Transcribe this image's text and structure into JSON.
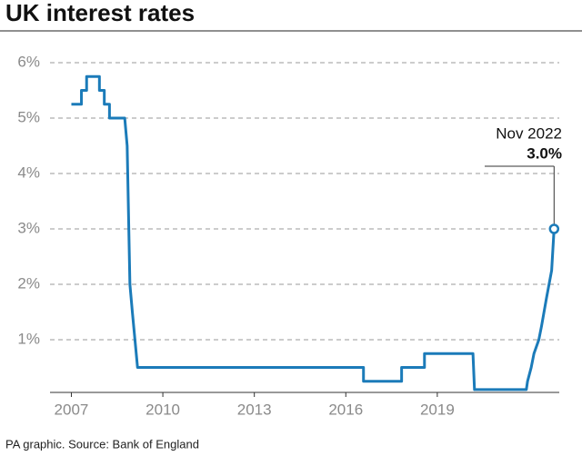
{
  "chart_data": {
    "type": "line",
    "title": "UK interest rates",
    "source": "PA graphic. Source: Bank of England",
    "x": [
      2007.0,
      2007.33,
      2007.33,
      2007.5,
      2007.5,
      2007.92,
      2007.92,
      2008.08,
      2008.08,
      2008.25,
      2008.25,
      2008.75,
      2008.83,
      2008.92,
      2009.0,
      2009.17,
      2016.58,
      2016.58,
      2017.83,
      2017.83,
      2018.58,
      2018.58,
      2020.17,
      2020.22,
      2021.92,
      2021.96,
      2022.08,
      2022.17,
      2022.33,
      2022.42,
      2022.58,
      2022.75,
      2022.83
    ],
    "series": [
      {
        "color": "#1b7bb9",
        "values": [
          5.25,
          5.25,
          5.5,
          5.5,
          5.75,
          5.75,
          5.5,
          5.5,
          5.25,
          5.25,
          5.0,
          5.0,
          4.5,
          2.0,
          1.5,
          0.5,
          0.5,
          0.25,
          0.25,
          0.5,
          0.5,
          0.75,
          0.75,
          0.1,
          0.1,
          0.25,
          0.5,
          0.75,
          1.0,
          1.25,
          1.75,
          2.25,
          3.0
        ]
      }
    ],
    "annotation": {
      "text": "Nov 2022",
      "label": "3.0%"
    },
    "xlim": [
      2006.3,
      2023.0
    ],
    "xticks": [
      2007,
      2010,
      2013,
      2016,
      2019
    ],
    "ylim": [
      0,
      6
    ],
    "yticks": [
      {
        "value": 1,
        "label": "1%"
      },
      {
        "value": 2,
        "label": "2%"
      },
      {
        "value": 3,
        "label": "3%"
      },
      {
        "value": 4,
        "label": "4%"
      },
      {
        "value": 5,
        "label": "5%"
      },
      {
        "value": 6,
        "label": "6%"
      }
    ],
    "grid": true
  }
}
